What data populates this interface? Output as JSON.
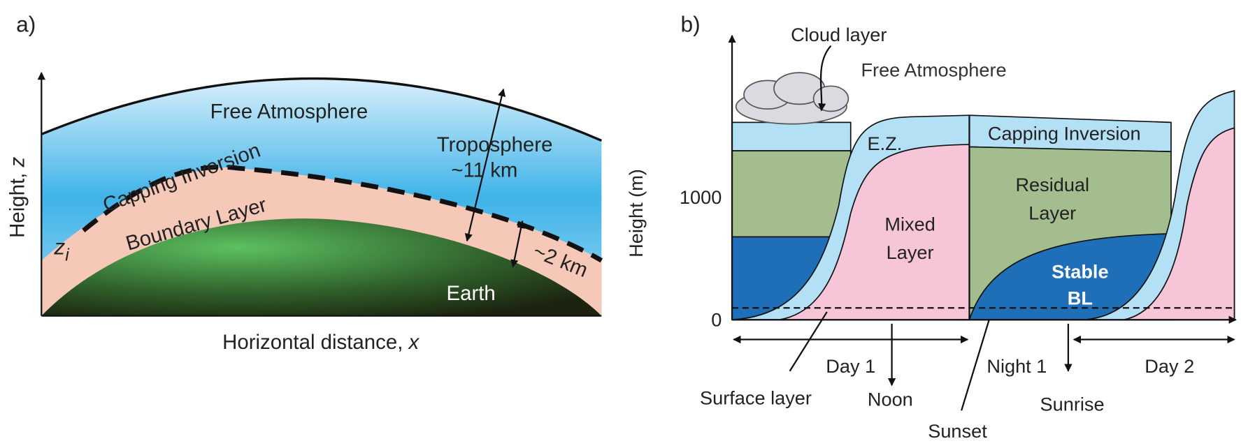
{
  "panel_a": {
    "label": "a)",
    "free_atmosphere": "Free Atmosphere",
    "capping_inversion": "Capping Inversion",
    "boundary_layer": "Boundary Layer",
    "earth": "Earth",
    "troposphere": "Troposphere",
    "troposphere_depth": "~11 km",
    "boundary_layer_depth": "~2 km",
    "zi_symbol": "z",
    "zi_subscript": "i",
    "y_axis_label": "Height,",
    "y_axis_variable": "z",
    "x_axis_label": "Horizontal distance,",
    "x_axis_variable": "x"
  },
  "panel_b": {
    "label": "b)",
    "cloud_layer": "Cloud layer",
    "free_atmosphere": "Free Atmosphere",
    "entrainment_zone": "E.Z.",
    "capping_inversion": "Capping Inversion",
    "residual_layer": [
      "Residual",
      "Layer"
    ],
    "mixed_layer": [
      "Mixed",
      "Layer"
    ],
    "stable_bl": [
      "Stable",
      "BL"
    ],
    "y_axis_label": "Height (m)",
    "y_ticks": [
      "1000",
      "0"
    ],
    "periods": [
      "Day 1",
      "Night 1",
      "Day 2"
    ],
    "surface_layer": "Surface layer",
    "noon": "Noon",
    "sunset": "Sunset",
    "sunrise": "Sunrise"
  }
}
